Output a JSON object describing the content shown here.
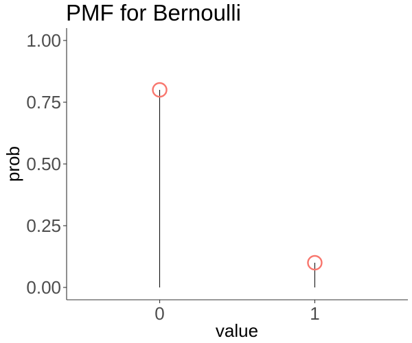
{
  "chart_data": {
    "type": "scatter",
    "title": "PMF for Bernoulli",
    "xlabel": "value",
    "ylabel": "prob",
    "x": [
      0,
      1
    ],
    "x_tick_labels": [
      "0",
      "1"
    ],
    "series": [
      {
        "values": [
          0.8,
          0.1
        ]
      }
    ],
    "y_ticks": [
      0.0,
      0.25,
      0.5,
      0.75,
      1.0
    ],
    "y_tick_labels": [
      "0.00",
      "0.25",
      "0.50",
      "0.75",
      "1.00"
    ],
    "xlim": [
      -0.6,
      1.6
    ],
    "ylim": [
      -0.05,
      1.05
    ],
    "marker": "open-circle",
    "stems": true,
    "grid": false,
    "legend": "none",
    "colors": {
      "point": "#f8766d",
      "stem": "#000000",
      "axis": "#333333",
      "tick_text": "#4d4d4d"
    }
  }
}
